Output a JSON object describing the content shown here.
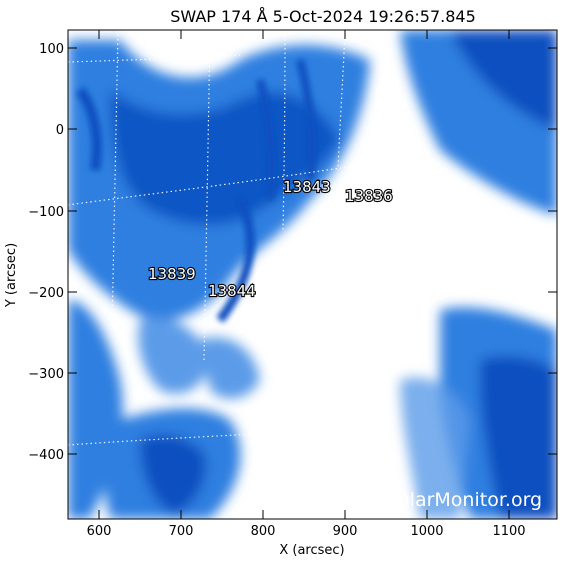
{
  "title": "SWAP 174 Å  5-Oct-2024 19:26:57.845",
  "xlabel": "X (arcsec)",
  "ylabel": "Y (arcsec)",
  "x_ticks": [
    "600",
    "700",
    "800",
    "900",
    "1000",
    "1100"
  ],
  "y_ticks": [
    "100",
    "0",
    "−100",
    "−200",
    "−300",
    "−400"
  ],
  "active_regions": [
    "13843",
    "13836",
    "13839",
    "13844"
  ],
  "watermark": "SolarMonitor.org",
  "colors": {
    "deep_blue": "#0a4fc0",
    "mid_blue": "#2f7fe0",
    "pale": "#ffffff"
  }
}
